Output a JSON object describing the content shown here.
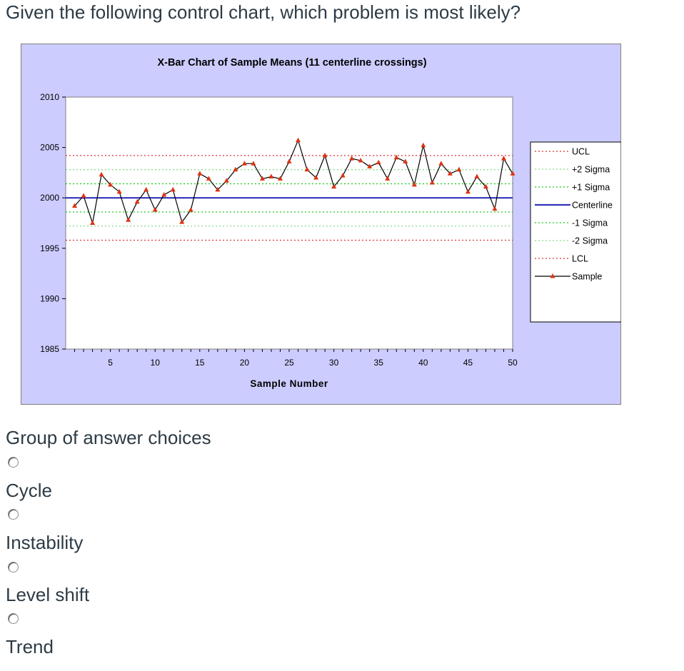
{
  "question": "Given the following control chart, which problem is most likely?",
  "group_label": "Group of answer choices",
  "answers": [
    {
      "label": "Cycle",
      "selected": false
    },
    {
      "label": "Instability",
      "selected": false
    },
    {
      "label": "Level shift",
      "selected": false
    },
    {
      "label": "Trend",
      "selected": false
    }
  ],
  "colors": {
    "chart_background": "#ccccff",
    "plot_background": "#ffffff",
    "ucl_lcl": "#e03030",
    "sigma1": "#22cc22",
    "sigma2": "#88dd88",
    "centerline": "#3333bb",
    "sample_line": "#000000",
    "sample_marker": "#dd3311"
  },
  "chart_data": {
    "type": "line",
    "title": "X-Bar Chart of Sample Means (11 centerline crossings)",
    "xlabel": "Sample Number",
    "ylabel": "",
    "xlim": [
      0,
      50
    ],
    "ylim": [
      1985,
      2010
    ],
    "xticks": [
      5,
      10,
      15,
      20,
      25,
      30,
      35,
      40,
      45,
      50
    ],
    "yticks": [
      1985,
      1990,
      1995,
      2000,
      2005,
      2010
    ],
    "grid": false,
    "legend": "right",
    "control_limits": [
      {
        "name": "UCL",
        "value": 2004.2
      },
      {
        "name": "+2 Sigma",
        "value": 2002.8
      },
      {
        "name": "+1 Sigma",
        "value": 2001.4
      },
      {
        "name": "Centerline",
        "value": 2000.0
      },
      {
        "name": "-1 Sigma",
        "value": 1998.6
      },
      {
        "name": "-2 Sigma",
        "value": 1997.2
      },
      {
        "name": "LCL",
        "value": 1995.8
      }
    ],
    "series": [
      {
        "name": "Sample",
        "x": [
          1,
          2,
          3,
          4,
          5,
          6,
          7,
          8,
          9,
          10,
          11,
          12,
          13,
          14,
          15,
          16,
          17,
          18,
          19,
          20,
          21,
          22,
          23,
          24,
          25,
          26,
          27,
          28,
          29,
          30,
          31,
          32,
          33,
          34,
          35,
          36,
          37,
          38,
          39,
          40,
          41,
          42,
          43,
          44,
          45,
          46,
          47,
          48,
          49,
          50
        ],
        "values": [
          1999.2,
          2000.2,
          1997.5,
          2002.3,
          2001.3,
          2000.6,
          1997.8,
          1999.6,
          2000.8,
          1998.8,
          2000.3,
          2000.8,
          1997.6,
          1998.8,
          2002.4,
          2001.9,
          2000.8,
          2001.7,
          2002.8,
          2003.4,
          2003.4,
          2001.9,
          2002.1,
          2001.9,
          2003.6,
          2005.7,
          2002.8,
          2002.0,
          2004.2,
          2001.1,
          2002.2,
          2003.9,
          2003.7,
          2003.1,
          2003.5,
          2001.9,
          2004.0,
          2003.6,
          2001.3,
          2005.2,
          2001.5,
          2003.4,
          2002.4,
          2002.8,
          2000.6,
          2002.1,
          2001.1,
          1998.9,
          2003.9,
          2002.4
        ]
      }
    ]
  }
}
